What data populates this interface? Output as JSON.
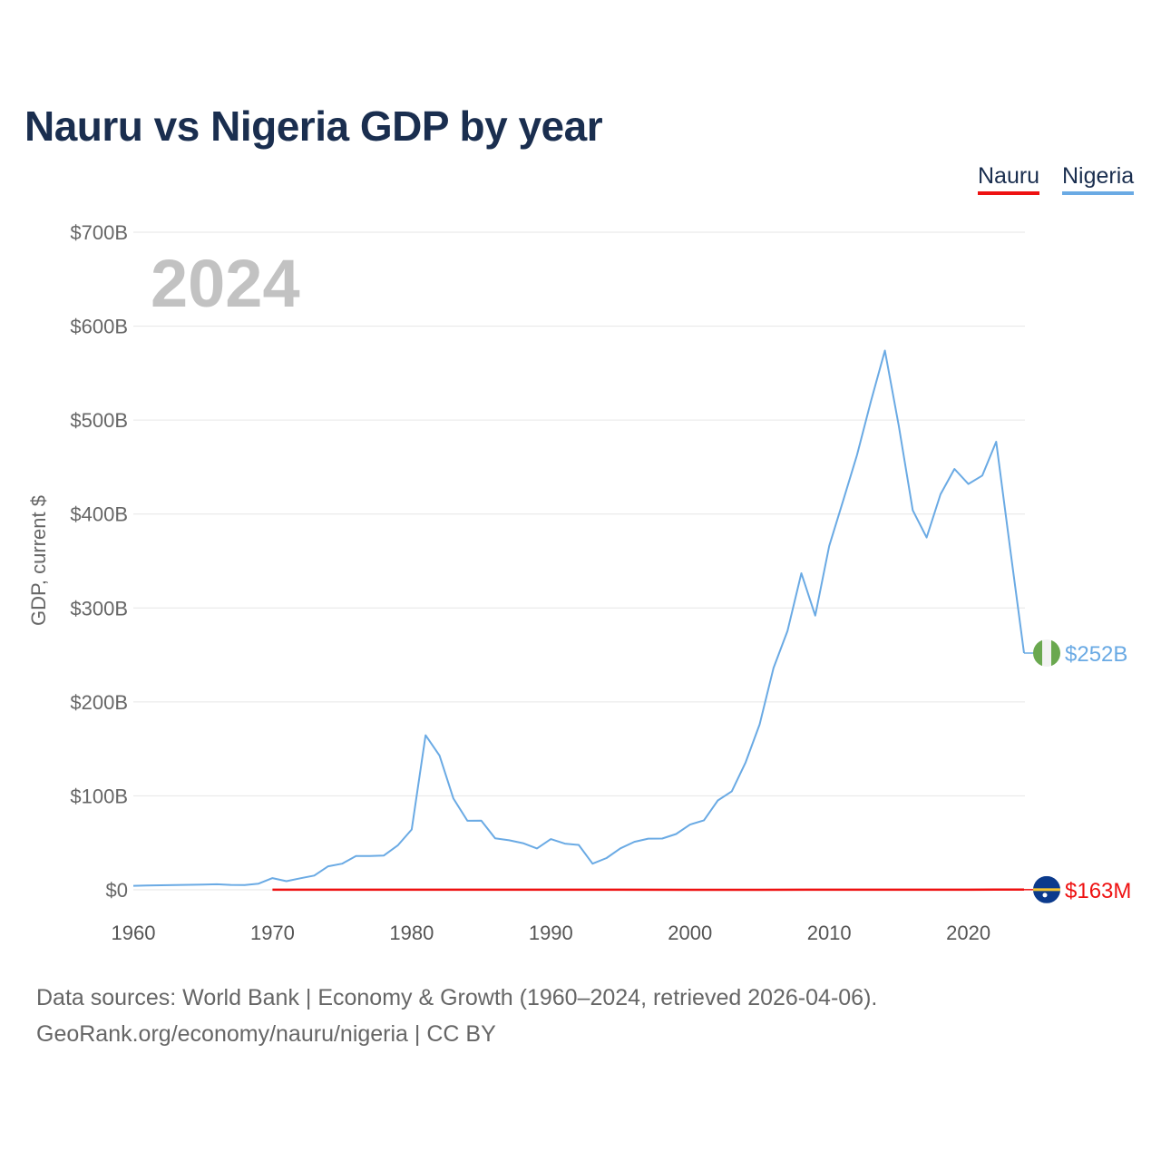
{
  "chart_data": {
    "type": "line",
    "title": "Nauru vs Nigeria GDP by year",
    "ylabel": "GDP, current $",
    "xlabel": "",
    "xlim": [
      1960,
      2024
    ],
    "ylim": [
      0,
      700
    ],
    "y_unit": "billions of current US$",
    "y_ticks": [
      {
        "value": 0,
        "label": "$0"
      },
      {
        "value": 100,
        "label": "$100B"
      },
      {
        "value": 200,
        "label": "$200B"
      },
      {
        "value": 300,
        "label": "$300B"
      },
      {
        "value": 400,
        "label": "$400B"
      },
      {
        "value": 500,
        "label": "$500B"
      },
      {
        "value": 600,
        "label": "$600B"
      },
      {
        "value": 700,
        "label": "$700B"
      }
    ],
    "x_ticks": [
      {
        "value": 1960,
        "label": "1960"
      },
      {
        "value": 1970,
        "label": "1970"
      },
      {
        "value": 1980,
        "label": "1980"
      },
      {
        "value": 1990,
        "label": "1990"
      },
      {
        "value": 2000,
        "label": "2000"
      },
      {
        "value": 2010,
        "label": "2010"
      },
      {
        "value": 2020,
        "label": "2020"
      }
    ],
    "grid": true,
    "legend_position": "top-right",
    "year_label": "2024",
    "series": [
      {
        "name": "Nauru",
        "color": "#ee1111",
        "end_label": "$163M",
        "flag": "nauru-flag",
        "x": [
          1970,
          1975,
          1980,
          1985,
          1990,
          1995,
          2000,
          2005,
          2010,
          2015,
          2018,
          2020,
          2022,
          2024
        ],
        "values": [
          0.06,
          0.1,
          0.12,
          0.1,
          0.1,
          0.08,
          0.04,
          0.03,
          0.05,
          0.11,
          0.13,
          0.12,
          0.15,
          0.163
        ]
      },
      {
        "name": "Nigeria",
        "color": "#6aaae4",
        "end_label": "$252B",
        "flag": "nigeria-flag",
        "x": [
          1960,
          1961,
          1962,
          1963,
          1964,
          1965,
          1966,
          1967,
          1968,
          1969,
          1970,
          1971,
          1972,
          1973,
          1974,
          1975,
          1976,
          1977,
          1978,
          1979,
          1980,
          1981,
          1982,
          1983,
          1984,
          1985,
          1986,
          1987,
          1988,
          1989,
          1990,
          1991,
          1992,
          1993,
          1994,
          1995,
          1996,
          1997,
          1998,
          1999,
          2000,
          2001,
          2002,
          2003,
          2004,
          2005,
          2006,
          2007,
          2008,
          2009,
          2010,
          2011,
          2012,
          2013,
          2014,
          2015,
          2016,
          2017,
          2018,
          2019,
          2020,
          2021,
          2022,
          2023,
          2024
        ],
        "values": [
          4.2,
          4.5,
          4.8,
          5.0,
          5.3,
          5.6,
          5.9,
          5.2,
          5.1,
          6.6,
          12.5,
          9.2,
          12.3,
          15.2,
          25.0,
          27.8,
          36.0,
          36.0,
          36.5,
          47.2,
          64.2,
          164.5,
          142.8,
          97.1,
          73.5,
          73.7,
          54.8,
          52.7,
          49.6,
          44.0,
          54.0,
          49.1,
          47.8,
          27.8,
          33.8,
          44.1,
          51.1,
          54.5,
          54.6,
          59.4,
          69.4,
          74.0,
          95.1,
          104.9,
          135.8,
          176.1,
          236.1,
          275.6,
          337.0,
          291.9,
          366.0,
          414.0,
          463.0,
          520.0,
          574.0,
          494.0,
          404.0,
          375.0,
          421.0,
          448.0,
          432.0,
          441.0,
          477.0,
          363.0,
          252.0
        ]
      }
    ]
  },
  "footer": {
    "line1": "Data sources: World Bank | Economy & Growth (1960–2024, retrieved 2026-04-06).",
    "line2": "GeoRank.org/economy/nauru/nigeria | CC BY"
  }
}
